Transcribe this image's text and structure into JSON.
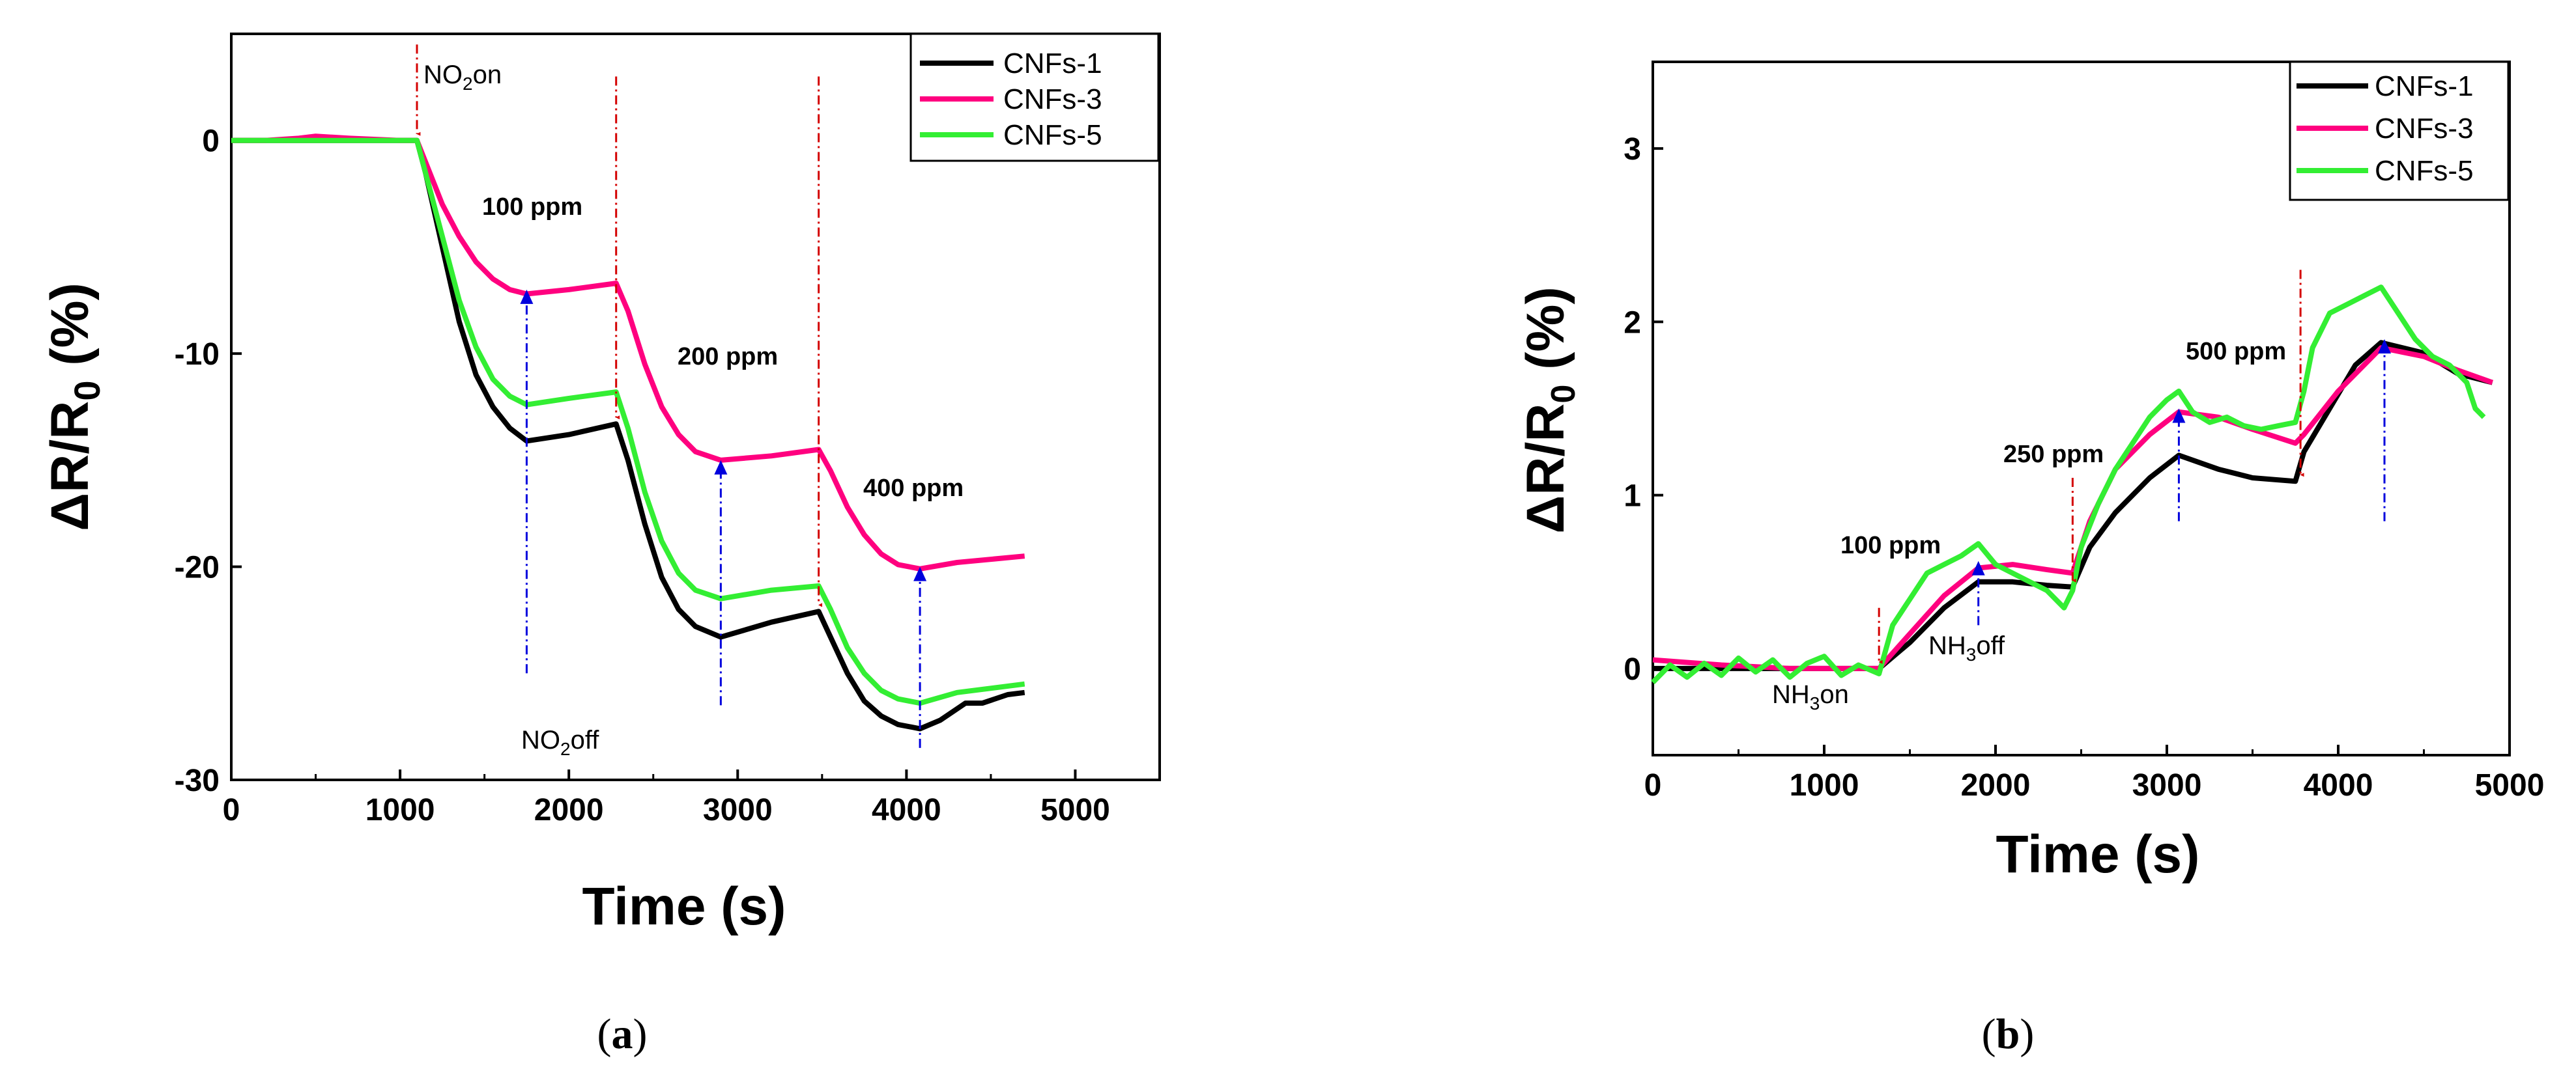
{
  "chart_data": [
    {
      "type": "line",
      "panel": "(a)",
      "caption_letter": "a",
      "xlabel": "Time (s)",
      "ylabel": "ΔR/R0 (%)",
      "xlim": [
        0,
        5500
      ],
      "ylim": [
        -30,
        5
      ],
      "xticks": [
        0,
        1000,
        2000,
        3000,
        4000,
        5000
      ],
      "yticks": [
        0,
        -10,
        -20,
        -30
      ],
      "legend_position": "top-right",
      "series": [
        {
          "name": "CNFs-1",
          "color": "#000000",
          "x": [
            0,
            1000,
            1100,
            1150,
            1250,
            1350,
            1450,
            1550,
            1650,
            1750,
            2000,
            2280,
            2350,
            2450,
            2550,
            2650,
            2750,
            2900,
            3200,
            3480,
            3550,
            3650,
            3750,
            3850,
            3950,
            4080,
            4200,
            4350,
            4450,
            4600,
            4700
          ],
          "y": [
            0,
            0,
            0,
            -1.5,
            -5,
            -8.5,
            -11,
            -12.5,
            -13.5,
            -14.1,
            -13.8,
            -13.3,
            -15,
            -18,
            -20.5,
            -22,
            -22.8,
            -23.3,
            -22.6,
            -22.1,
            -23.3,
            -25,
            -26.3,
            -27,
            -27.4,
            -27.6,
            -27.2,
            -26.4,
            -26.4,
            -26,
            -25.9
          ]
        },
        {
          "name": "CNFs-3",
          "color": "#ff007f",
          "x": [
            0,
            200,
            400,
            500,
            700,
            1000,
            1100,
            1150,
            1250,
            1350,
            1450,
            1550,
            1650,
            1750,
            2000,
            2280,
            2350,
            2450,
            2550,
            2650,
            2750,
            2900,
            3200,
            3480,
            3550,
            3650,
            3750,
            3850,
            3950,
            4080,
            4300,
            4700
          ],
          "y": [
            0,
            0,
            0.1,
            0.2,
            0.1,
            0,
            0,
            -1,
            -3,
            -4.5,
            -5.7,
            -6.5,
            -7,
            -7.2,
            -7,
            -6.7,
            -8,
            -10.5,
            -12.5,
            -13.8,
            -14.6,
            -15,
            -14.8,
            -14.5,
            -15.5,
            -17.2,
            -18.5,
            -19.4,
            -19.9,
            -20.1,
            -19.8,
            -19.5
          ]
        },
        {
          "name": "CNFs-5",
          "color": "#33ee33",
          "x": [
            0,
            1000,
            1100,
            1150,
            1250,
            1350,
            1450,
            1550,
            1650,
            1750,
            2000,
            2280,
            2350,
            2450,
            2550,
            2650,
            2750,
            2900,
            3200,
            3480,
            3550,
            3650,
            3750,
            3850,
            3950,
            4080,
            4300,
            4700
          ],
          "y": [
            0,
            0,
            0,
            -1.5,
            -4.5,
            -7.5,
            -9.7,
            -11.2,
            -12,
            -12.4,
            -12.1,
            -11.8,
            -13.5,
            -16.5,
            -18.8,
            -20.3,
            -21.1,
            -21.5,
            -21.1,
            -20.9,
            -22,
            -23.8,
            -25,
            -25.8,
            -26.2,
            -26.4,
            -25.9,
            -25.5
          ]
        }
      ],
      "gas_on_markers": [
        1100,
        2280,
        3480
      ],
      "gas_off_markers": [
        1750,
        2900,
        4080
      ],
      "annotations": {
        "gas_on": "NO2on",
        "gas_off": "NO2off",
        "conc_1": "100 ppm",
        "conc_2": "200 ppm",
        "conc_3": "400 ppm"
      }
    },
    {
      "type": "line",
      "panel": "(b)",
      "caption_letter": "b",
      "xlabel": "Time (s)",
      "ylabel": "ΔR/R0 (%)",
      "xlim": [
        0,
        5000
      ],
      "ylim": [
        -0.5,
        3.5
      ],
      "xticks": [
        0,
        1000,
        2000,
        3000,
        4000,
        5000
      ],
      "yticks": [
        0,
        1,
        2,
        3
      ],
      "legend_position": "top-right",
      "series": [
        {
          "name": "CNFs-1",
          "color": "#000000",
          "x": [
            0,
            400,
            800,
            1200,
            1320,
            1500,
            1700,
            1900,
            2100,
            2300,
            2450,
            2550,
            2700,
            2900,
            3070,
            3300,
            3500,
            3750,
            3800,
            3950,
            4100,
            4250,
            4500,
            4700,
            4900
          ],
          "y": [
            0,
            0,
            0,
            0,
            0,
            0.15,
            0.35,
            0.5,
            0.5,
            0.48,
            0.47,
            0.7,
            0.9,
            1.1,
            1.23,
            1.15,
            1.1,
            1.08,
            1.25,
            1.5,
            1.75,
            1.88,
            1.82,
            1.7,
            1.65
          ]
        },
        {
          "name": "CNFs-3",
          "color": "#ff007f",
          "x": [
            0,
            400,
            800,
            1200,
            1320,
            1500,
            1700,
            1900,
            2100,
            2300,
            2450,
            2550,
            2700,
            2900,
            3070,
            3300,
            3500,
            3750,
            3800,
            4000,
            4250,
            4500,
            4700,
            4900
          ],
          "y": [
            0.05,
            0.02,
            0,
            0,
            0,
            0.2,
            0.42,
            0.58,
            0.6,
            0.57,
            0.55,
            0.85,
            1.15,
            1.35,
            1.48,
            1.45,
            1.38,
            1.3,
            1.35,
            1.6,
            1.85,
            1.8,
            1.72,
            1.65
          ]
        },
        {
          "name": "CNFs-5",
          "color": "#33ee33",
          "x": [
            0,
            100,
            200,
            300,
            400,
            500,
            600,
            700,
            800,
            900,
            1000,
            1100,
            1200,
            1320,
            1400,
            1500,
            1600,
            1700,
            1800,
            1900,
            2000,
            2100,
            2200,
            2300,
            2400,
            2450,
            2500,
            2600,
            2700,
            2800,
            2900,
            3000,
            3070,
            3150,
            3250,
            3350,
            3450,
            3550,
            3650,
            3750,
            3800,
            3850,
            3950,
            4050,
            4150,
            4250,
            4350,
            4450,
            4550,
            4650,
            4750,
            4800,
            4850
          ],
          "y": [
            -0.08,
            0.02,
            -0.05,
            0.03,
            -0.04,
            0.06,
            -0.02,
            0.05,
            -0.05,
            0.03,
            0.07,
            -0.04,
            0.02,
            -0.03,
            0.25,
            0.4,
            0.55,
            0.6,
            0.65,
            0.72,
            0.6,
            0.55,
            0.5,
            0.45,
            0.35,
            0.45,
            0.7,
            0.95,
            1.15,
            1.3,
            1.45,
            1.55,
            1.6,
            1.48,
            1.42,
            1.45,
            1.4,
            1.38,
            1.4,
            1.42,
            1.6,
            1.85,
            2.05,
            2.1,
            2.15,
            2.2,
            2.05,
            1.9,
            1.8,
            1.75,
            1.65,
            1.5,
            1.45
          ]
        }
      ],
      "gas_on_markers": [
        1320,
        2450,
        3780
      ],
      "gas_off_markers": [
        1900,
        3070,
        4270
      ],
      "annotations": {
        "gas_on": "NH3on",
        "gas_off": "NH3off",
        "conc_1": "100 ppm",
        "conc_2": "250 ppm",
        "conc_3": "500 ppm"
      }
    }
  ]
}
